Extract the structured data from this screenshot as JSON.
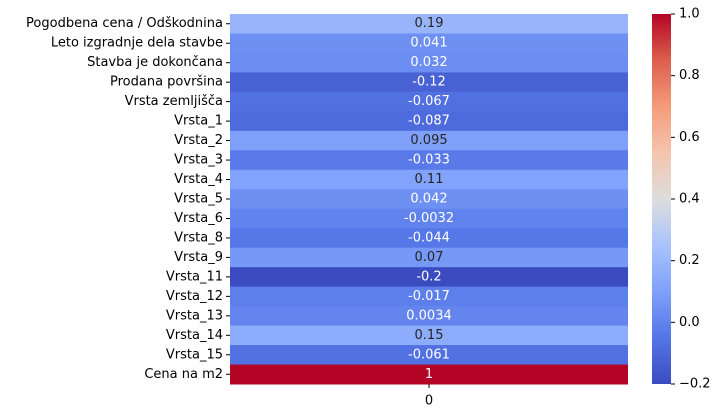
{
  "chart_data": {
    "type": "heatmap",
    "colormap": "coolwarm",
    "rows": [
      "Pogodbena cena / Odškodnina",
      "Leto izgradnje dela stavbe",
      "Stavba je dokončana",
      "Prodana površina",
      "Vrsta zemljišča",
      "Vrsta_1",
      "Vrsta_2",
      "Vrsta_3",
      "Vrsta_4",
      "Vrsta_5",
      "Vrsta_6",
      "Vrsta_8",
      "Vrsta_9",
      "Vrsta_11",
      "Vrsta_12",
      "Vrsta_13",
      "Vrsta_14",
      "Vrsta_15",
      "Cena na m2"
    ],
    "columns": [
      "0"
    ],
    "values": [
      0.19,
      0.041,
      0.032,
      -0.12,
      -0.067,
      -0.087,
      0.095,
      -0.033,
      0.11,
      0.042,
      -0.0032,
      -0.044,
      0.07,
      -0.2,
      -0.017,
      0.0034,
      0.15,
      -0.061,
      1
    ],
    "value_labels": [
      "0.19",
      "0.041",
      "0.032",
      "-0.12",
      "-0.067",
      "-0.087",
      "0.095",
      "-0.033",
      "0.11",
      "0.042",
      "-0.0032",
      "-0.044",
      "0.07",
      "-0.2",
      "-0.017",
      "0.0034",
      "0.15",
      "-0.061",
      "1"
    ],
    "colorbar": {
      "range": [
        -0.2,
        1.0
      ],
      "ticks": [
        "−0.2",
        "0.0",
        "0.2",
        "0.4",
        "0.6",
        "0.8",
        "1.0"
      ]
    }
  }
}
